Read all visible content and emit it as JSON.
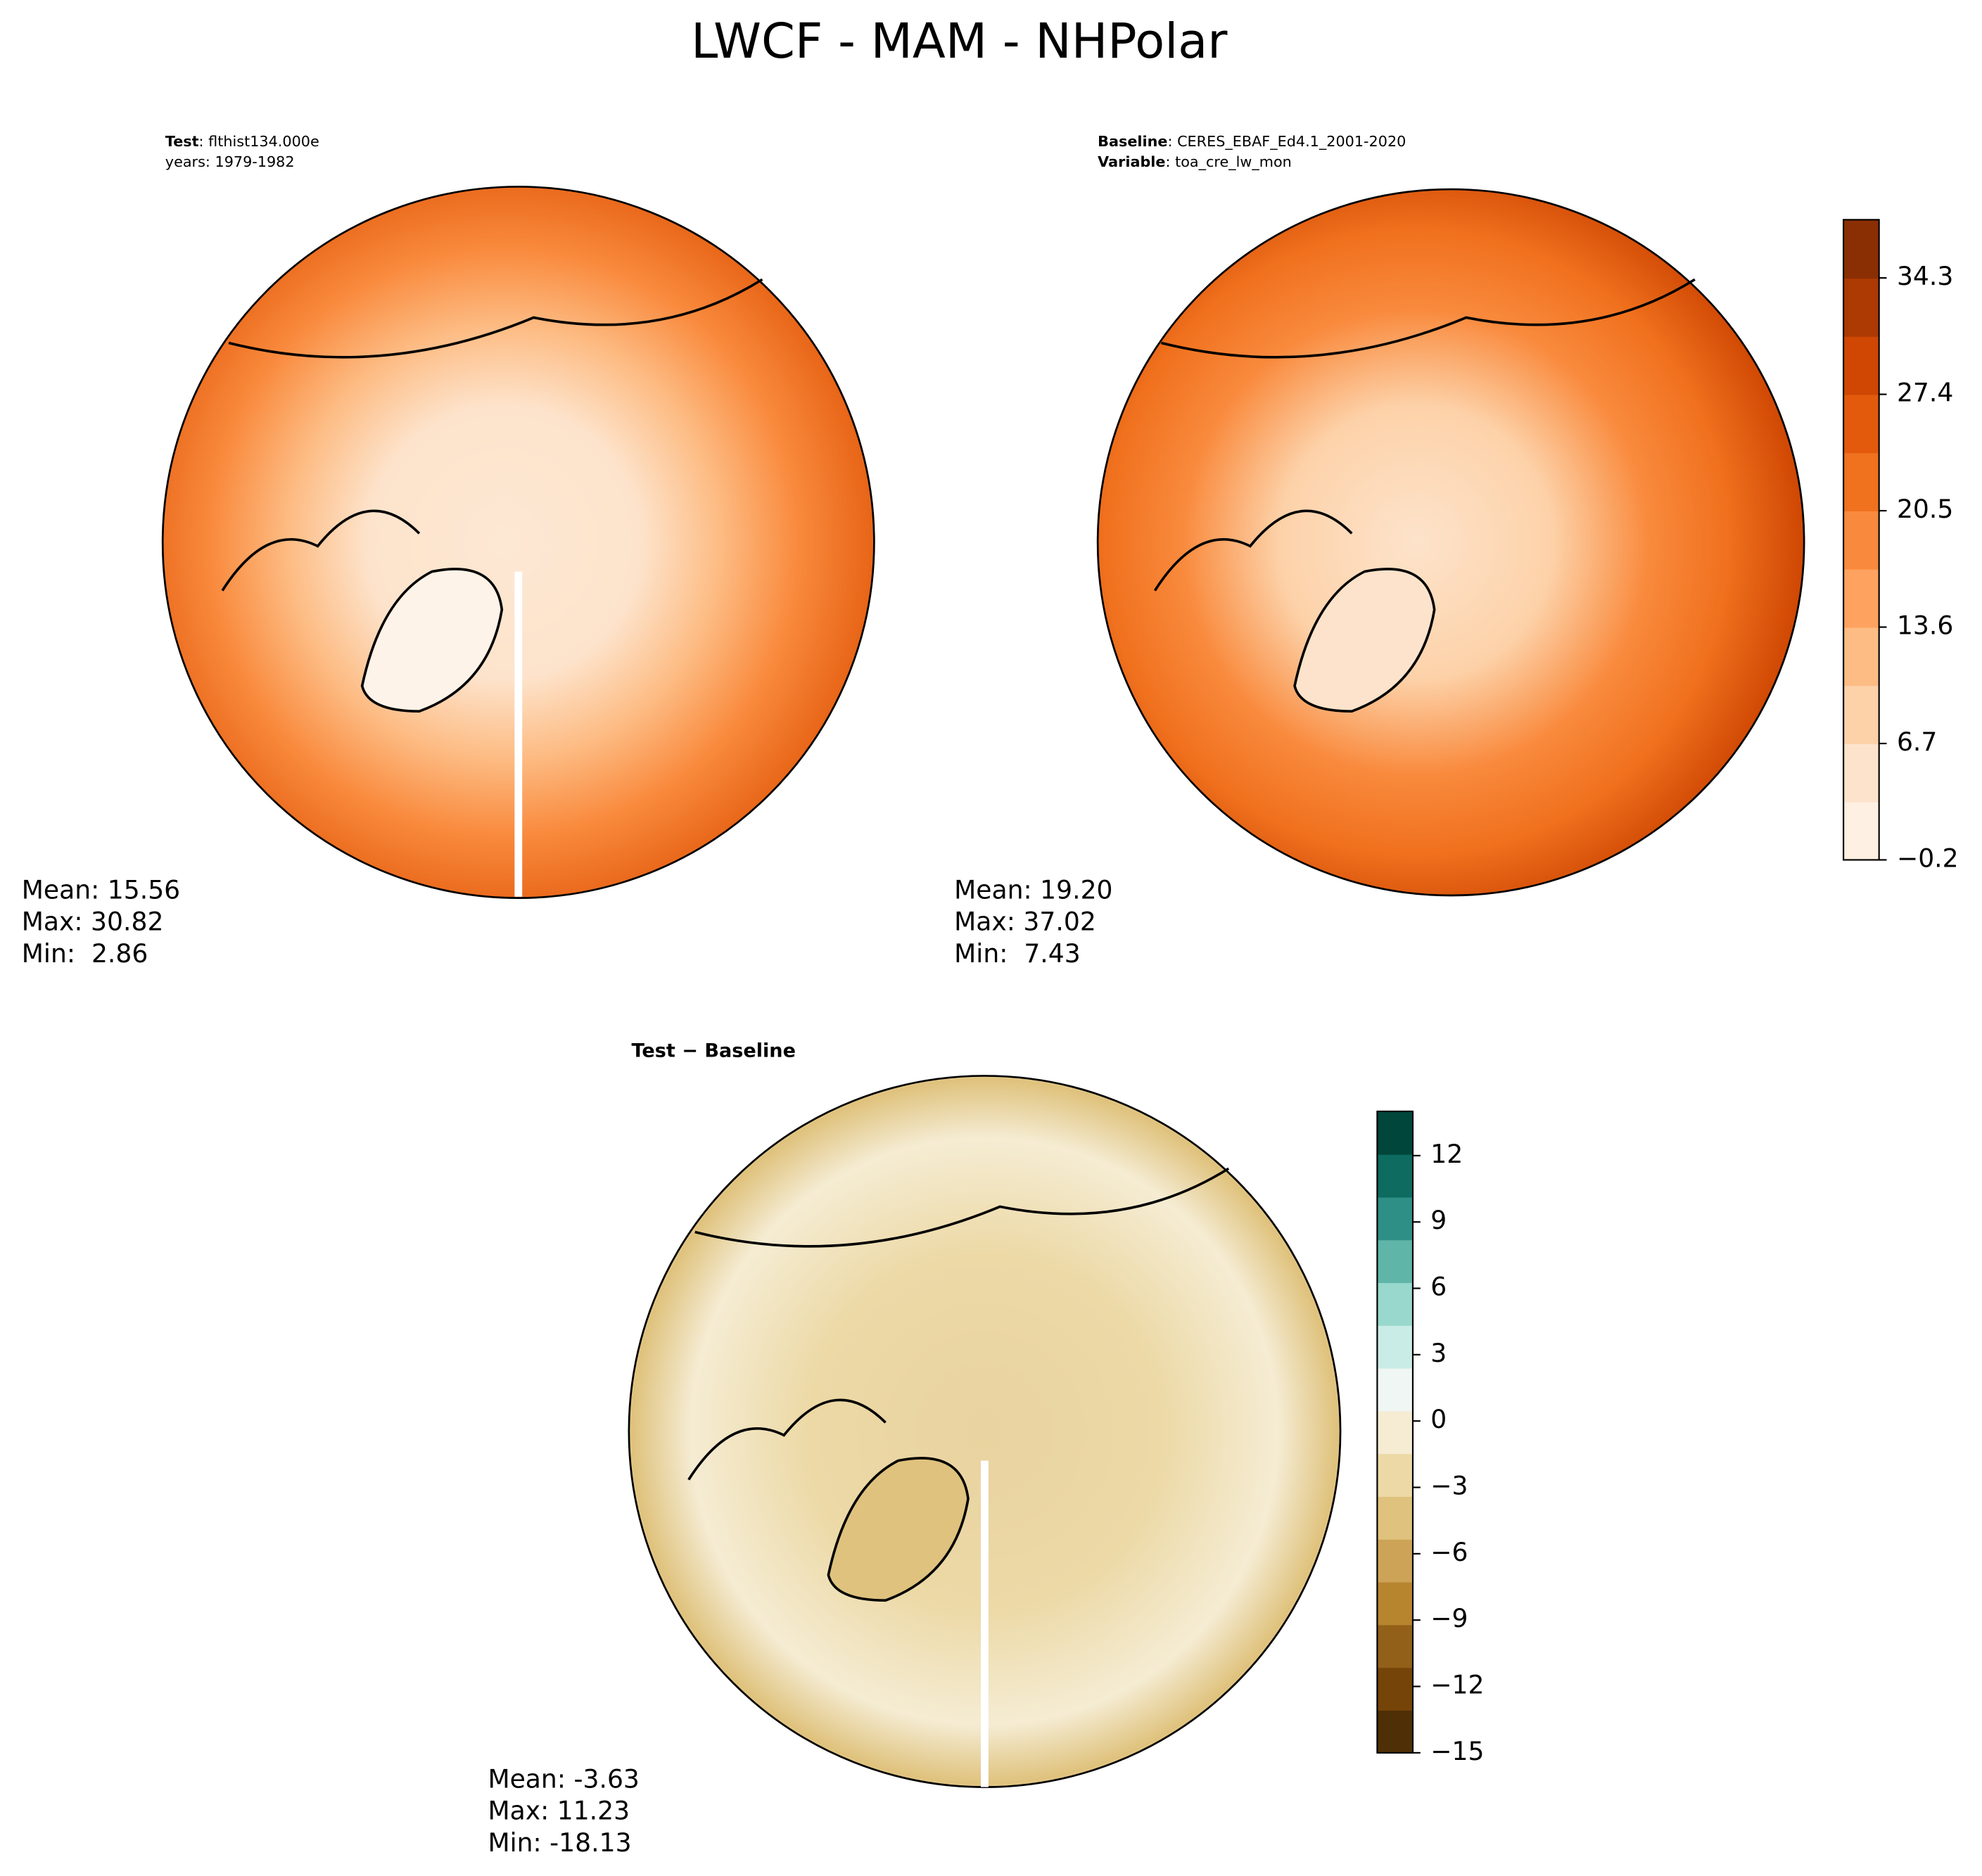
{
  "title": "LWCF - MAM - NHPolar",
  "chart_data": [
    {
      "type": "map",
      "label_bold": "Test",
      "label": ": flthist134.000e",
      "sublabel": "years: 1979-1982",
      "stats": [
        "Mean: 15.56",
        "Max: 30.82",
        "Min:  2.86"
      ]
    },
    {
      "type": "map",
      "label_bold": "Baseline",
      "label": ": CERES_EBAF_Ed4.1_2001-2020",
      "sublabel_bold": "Variable",
      "sublabel": ": toa_cre_lw_mon",
      "stats": [
        "Mean: 19.20",
        "Max: 37.02",
        "Min:  7.43"
      ]
    },
    {
      "type": "colorbar",
      "colors": [
        "#fef0e2",
        "#fde3cb",
        "#fdd2a9",
        "#fdbc84",
        "#fda25f",
        "#f98a3d",
        "#f0711e",
        "#e35a0c",
        "#cf4703",
        "#ad3903",
        "#8a2f04"
      ],
      "ylim": [
        -0.2,
        37.75
      ],
      "yticks": [
        {
          "value": -0.2,
          "label": "−0.2"
        },
        6.7,
        13.6,
        20.5,
        27.4,
        34.3
      ]
    },
    {
      "type": "map",
      "label_bold": "Test − Baseline",
      "stats": [
        "Mean: -3.63",
        "Max: 11.23",
        "Min: -18.13"
      ]
    },
    {
      "type": "colorbar",
      "colors": [
        "#4f2f05",
        "#744409",
        "#93601a",
        "#b8852f",
        "#cda457",
        "#dfc27d",
        "#ecd9a6",
        "#f5ecd3",
        "#eff6f4",
        "#c9ece6",
        "#99d8cc",
        "#5fb5a8",
        "#2e8f86",
        "#0d6b5f",
        "#00463b"
      ],
      "ylim": [
        -15,
        14
      ],
      "yticks": [
        {
          "value": -15,
          "label": "−15"
        },
        {
          "value": -12,
          "label": "−12"
        },
        {
          "value": -9,
          "label": "−9"
        },
        {
          "value": -6,
          "label": "−6"
        },
        {
          "value": -3,
          "label": "−3"
        },
        0,
        3,
        6,
        9,
        12
      ]
    }
  ]
}
